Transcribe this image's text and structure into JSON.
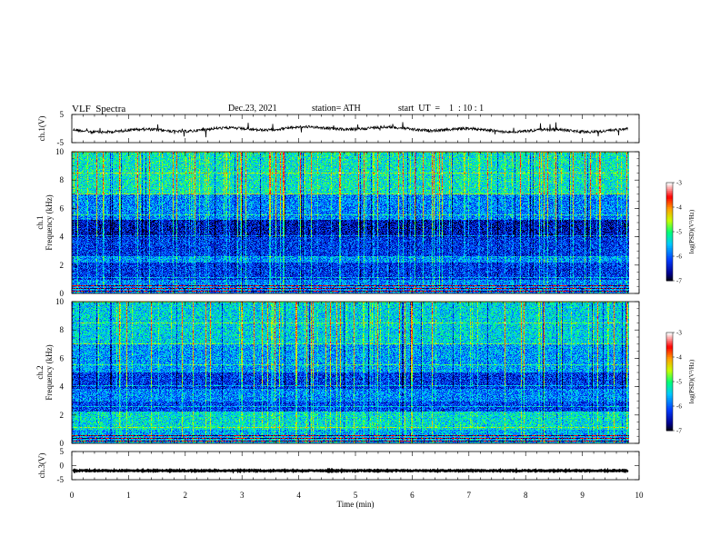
{
  "header": {
    "title": "VLF  Spectra",
    "date": "Dec.23, 2021",
    "station": "station= ATH",
    "start_ut": "start  UT  =    1  : 10 : 1"
  },
  "chart_data": [
    {
      "type": "line",
      "name": "ch1-waveform",
      "ylabel": "ch.1(V)",
      "ylim": [
        -5,
        5
      ],
      "yticks": [
        "5",
        "-5"
      ],
      "xlim": [
        0,
        10
      ],
      "x_end": 9.8,
      "baseline": -0.3,
      "color": "#000000"
    },
    {
      "type": "heatmap",
      "name": "ch1-spectrogram",
      "ylabel": "ch.1\nFrequency  (kHz)",
      "ylim": [
        0,
        10
      ],
      "yticks": [
        "0",
        "2",
        "4",
        "6",
        "8",
        "10"
      ],
      "xlim": [
        0,
        10
      ],
      "x_end": 9.8,
      "colorbar": {
        "label": "log(PSD)(V²/Hz)",
        "range": [
          -7,
          -3
        ],
        "ticks": [
          "-3",
          "-4",
          "-5",
          "-6",
          "-7"
        ]
      }
    },
    {
      "type": "heatmap",
      "name": "ch2-spectrogram",
      "ylabel": "ch.2\nFrequency  (kHz)",
      "ylim": [
        0,
        10
      ],
      "yticks": [
        "0",
        "2",
        "4",
        "6",
        "8",
        "10"
      ],
      "xlim": [
        0,
        10
      ],
      "x_end": 9.8,
      "colorbar": {
        "label": "log(PSD)(V²/Hz)",
        "range": [
          -7,
          -3
        ],
        "ticks": [
          "-3",
          "-4",
          "-5",
          "-6",
          "-7"
        ]
      }
    },
    {
      "type": "line",
      "name": "ch3-waveform",
      "ylabel": "ch.3(V)",
      "ylim": [
        -5,
        5
      ],
      "yticks": [
        "5",
        "0",
        "-5"
      ],
      "xlim": [
        0,
        10
      ],
      "x_end": 9.8,
      "baseline": -1.8,
      "color": "#000000"
    }
  ],
  "xaxis": {
    "label": "Time  (min)",
    "ticks": [
      "0",
      "1",
      "2",
      "3",
      "4",
      "5",
      "6",
      "7",
      "8",
      "9",
      "10"
    ]
  }
}
